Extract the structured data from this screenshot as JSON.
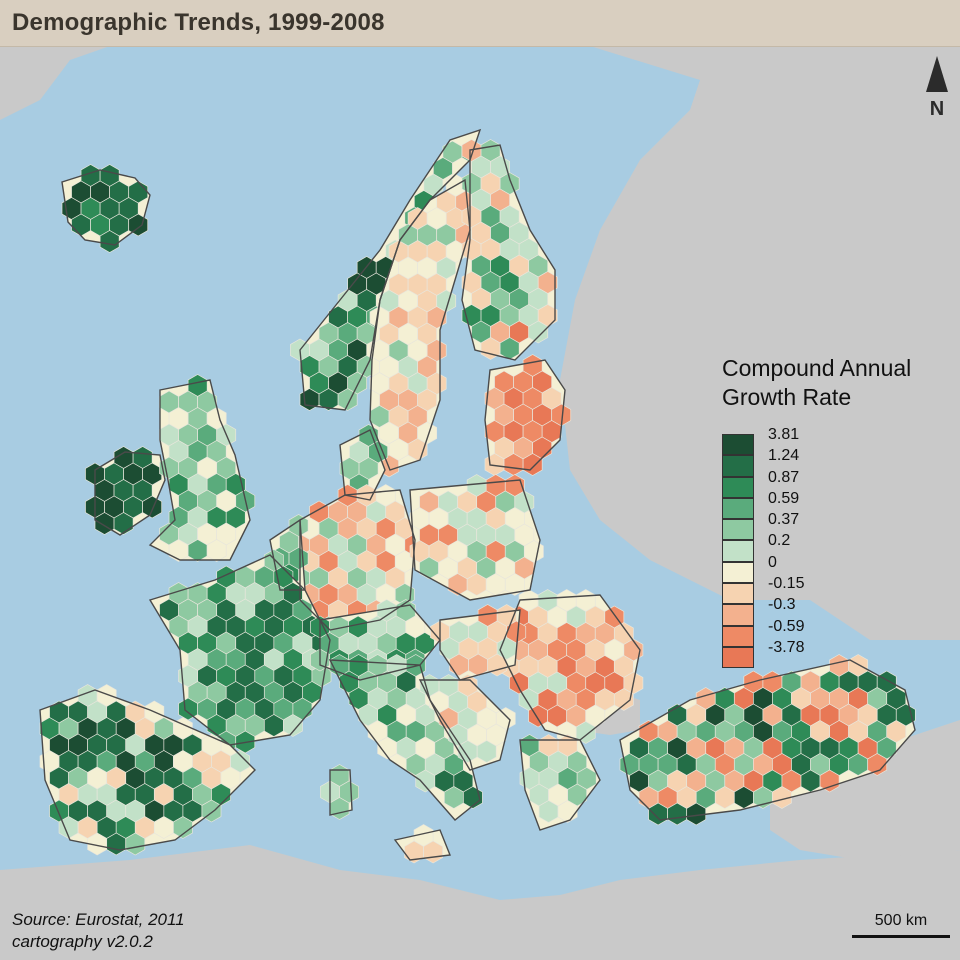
{
  "title": "Demographic Trends, 1999-2008",
  "north_label": "N",
  "legend": {
    "title_lines": [
      "Compound Annual",
      "Growth Rate"
    ],
    "classes": [
      {
        "label": "3.81",
        "color": "#1c4d33"
      },
      {
        "label": "1.24",
        "color": "#236e47"
      },
      {
        "label": "0.87",
        "color": "#2e8b57"
      },
      {
        "label": "0.59",
        "color": "#5aab7c"
      },
      {
        "label": "0.37",
        "color": "#8ec9a1"
      },
      {
        "label": "0.2",
        "color": "#c2e1c8"
      },
      {
        "label": "0",
        "color": "#f4f0d4"
      },
      {
        "label": "-0.15",
        "color": "#f6d3b1"
      },
      {
        "label": "-0.3",
        "color": "#f3b18e"
      },
      {
        "label": "-0.59",
        "color": "#ee8a65"
      },
      {
        "label": "-3.78",
        "color": "#e87856"
      }
    ]
  },
  "source_lines": [
    "Source: Eurostat, 2011",
    "cartography v2.0.2"
  ],
  "scale_label": "500 km",
  "colors": {
    "sea": "#a8cce2",
    "land_outside": "#c9c9c9",
    "border": "#4a4a4a",
    "title_bar": "#d9cfc0"
  }
}
